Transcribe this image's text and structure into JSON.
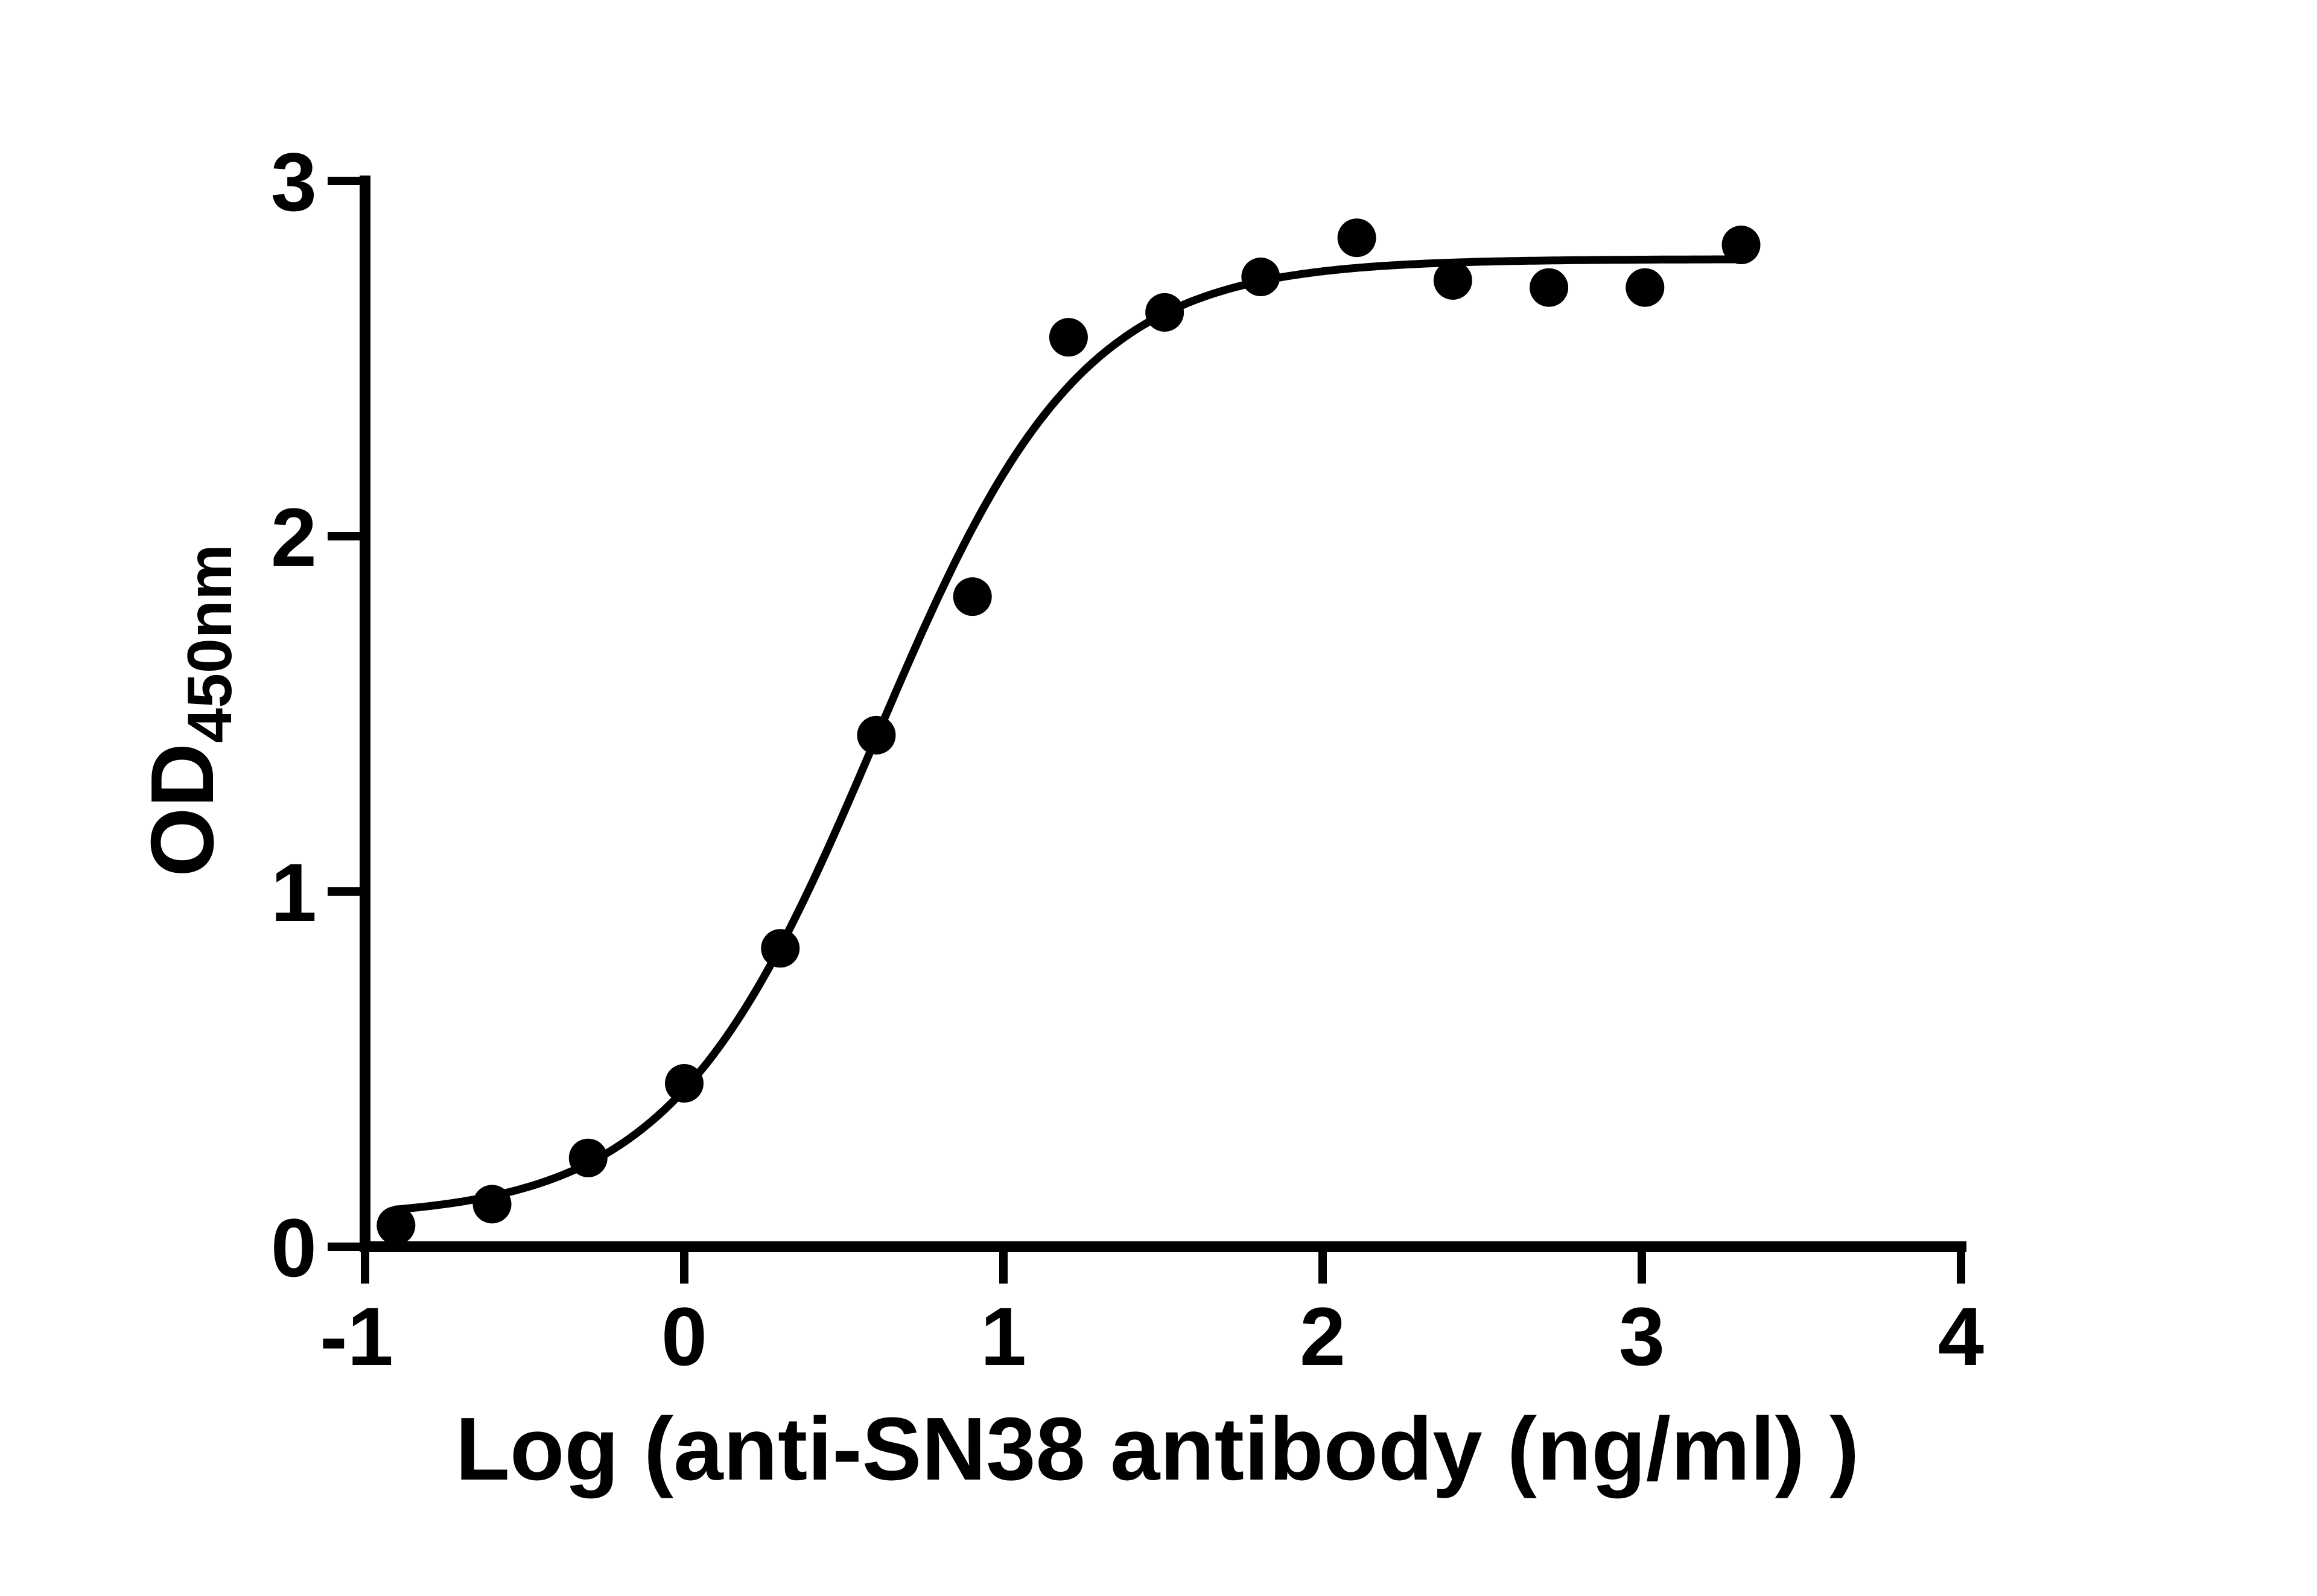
{
  "chart_data": {
    "type": "scatter",
    "title": "",
    "xlabel": "Log (anti-SN38 antibody (ng/ml) )",
    "ylabel": "OD",
    "ylabel_subscript": "450nm",
    "xlim": [
      -1,
      4
    ],
    "ylim": [
      0,
      3
    ],
    "xticks": [
      -1,
      0,
      1,
      2,
      3,
      4
    ],
    "yticks": [
      0,
      1,
      2,
      3
    ],
    "xtick_labels": [
      "-1",
      "0",
      "1",
      "2",
      "3",
      "4"
    ],
    "ytick_labels": [
      "0",
      "1",
      "2",
      "3"
    ],
    "grid": false,
    "legend": null,
    "series": [
      {
        "name": "anti-SN38 antibody",
        "marker": "circle",
        "color": "#000000",
        "x": [
          -0.903,
          -0.602,
          -0.301,
          0.0,
          0.301,
          0.602,
          0.903,
          1.204,
          1.505,
          1.806,
          2.107,
          2.408,
          2.709,
          3.01,
          3.311
        ],
        "y": [
          0.06,
          0.12,
          0.25,
          0.46,
          0.84,
          1.44,
          1.83,
          2.56,
          2.63,
          2.73,
          2.84,
          2.72,
          2.7,
          2.7,
          2.82
        ]
      }
    ],
    "fit_curve": {
      "model": "4PL sigmoidal dose-response",
      "bottom": 0.08,
      "top": 2.78,
      "logEC50": 0.6,
      "hill_slope": 1.35,
      "x_range": [
        -0.903,
        3.311
      ],
      "color": "#000000"
    }
  }
}
